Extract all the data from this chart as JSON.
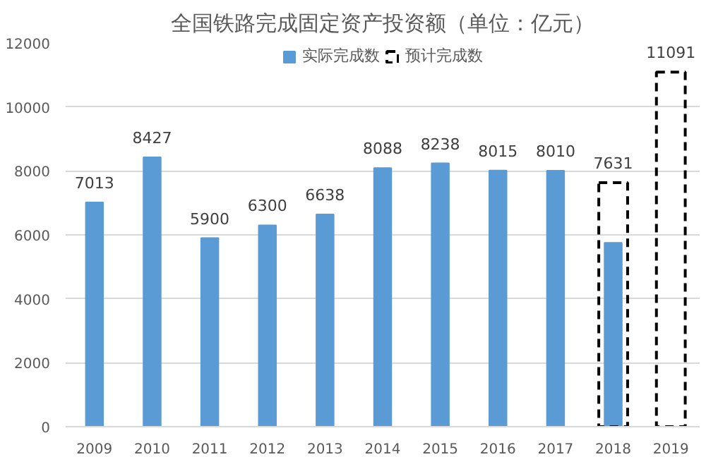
{
  "chart_data": {
    "type": "bar",
    "title": "全国铁路完成固定资产投资额（单位：亿元）",
    "categories": [
      "2009",
      "2010",
      "2011",
      "2012",
      "2013",
      "2014",
      "2015",
      "2016",
      "2017",
      "2018",
      "2019"
    ],
    "series": [
      {
        "name": "实际完成数",
        "color": "#5b9bd5",
        "values": [
          7013,
          8427,
          5900,
          6300,
          6638,
          8088,
          8238,
          8015,
          8010,
          5750,
          null
        ],
        "value_labels": [
          "7013",
          "8427",
          "5900",
          "6300",
          "6638",
          "8088",
          "8238",
          "8015",
          "8010",
          null,
          null
        ]
      },
      {
        "name": "预计完成数",
        "color": "#000000",
        "line_style": "dashed",
        "values": [
          null,
          null,
          null,
          null,
          null,
          null,
          null,
          null,
          null,
          7631,
          11091
        ],
        "value_labels": [
          null,
          null,
          null,
          null,
          null,
          null,
          null,
          null,
          null,
          "7631",
          "11091"
        ]
      }
    ],
    "ylim": [
      0,
      12000
    ],
    "yticks": [
      0,
      2000,
      4000,
      6000,
      8000,
      10000,
      12000
    ],
    "grid": "y",
    "legend": "top"
  }
}
